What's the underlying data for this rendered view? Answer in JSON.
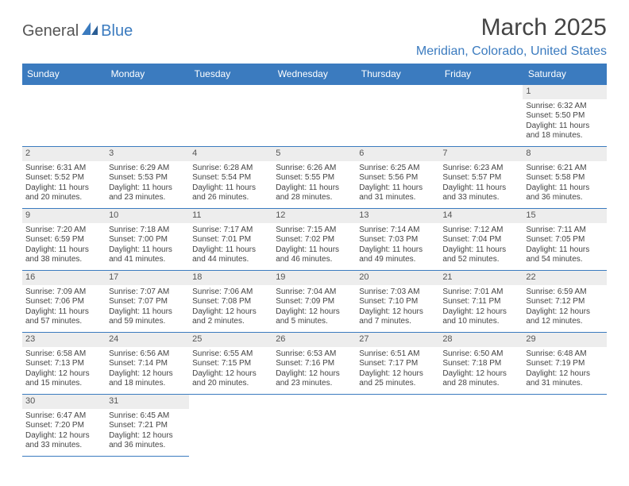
{
  "logo": {
    "t1": "General",
    "t2": "Blue"
  },
  "title": "March 2025",
  "location": "Meridian, Colorado, United States",
  "colors": {
    "brand": "#3b7bbf",
    "gray": "#ededed"
  },
  "dayHeaders": [
    "Sunday",
    "Monday",
    "Tuesday",
    "Wednesday",
    "Thursday",
    "Friday",
    "Saturday"
  ],
  "weeks": [
    [
      null,
      null,
      null,
      null,
      null,
      null,
      {
        "d": "1",
        "sr": "Sunrise: 6:32 AM",
        "ss": "Sunset: 5:50 PM",
        "dl1": "Daylight: 11 hours",
        "dl2": "and 18 minutes."
      }
    ],
    [
      {
        "d": "2",
        "sr": "Sunrise: 6:31 AM",
        "ss": "Sunset: 5:52 PM",
        "dl1": "Daylight: 11 hours",
        "dl2": "and 20 minutes."
      },
      {
        "d": "3",
        "sr": "Sunrise: 6:29 AM",
        "ss": "Sunset: 5:53 PM",
        "dl1": "Daylight: 11 hours",
        "dl2": "and 23 minutes."
      },
      {
        "d": "4",
        "sr": "Sunrise: 6:28 AM",
        "ss": "Sunset: 5:54 PM",
        "dl1": "Daylight: 11 hours",
        "dl2": "and 26 minutes."
      },
      {
        "d": "5",
        "sr": "Sunrise: 6:26 AM",
        "ss": "Sunset: 5:55 PM",
        "dl1": "Daylight: 11 hours",
        "dl2": "and 28 minutes."
      },
      {
        "d": "6",
        "sr": "Sunrise: 6:25 AM",
        "ss": "Sunset: 5:56 PM",
        "dl1": "Daylight: 11 hours",
        "dl2": "and 31 minutes."
      },
      {
        "d": "7",
        "sr": "Sunrise: 6:23 AM",
        "ss": "Sunset: 5:57 PM",
        "dl1": "Daylight: 11 hours",
        "dl2": "and 33 minutes."
      },
      {
        "d": "8",
        "sr": "Sunrise: 6:21 AM",
        "ss": "Sunset: 5:58 PM",
        "dl1": "Daylight: 11 hours",
        "dl2": "and 36 minutes."
      }
    ],
    [
      {
        "d": "9",
        "sr": "Sunrise: 7:20 AM",
        "ss": "Sunset: 6:59 PM",
        "dl1": "Daylight: 11 hours",
        "dl2": "and 38 minutes."
      },
      {
        "d": "10",
        "sr": "Sunrise: 7:18 AM",
        "ss": "Sunset: 7:00 PM",
        "dl1": "Daylight: 11 hours",
        "dl2": "and 41 minutes."
      },
      {
        "d": "11",
        "sr": "Sunrise: 7:17 AM",
        "ss": "Sunset: 7:01 PM",
        "dl1": "Daylight: 11 hours",
        "dl2": "and 44 minutes."
      },
      {
        "d": "12",
        "sr": "Sunrise: 7:15 AM",
        "ss": "Sunset: 7:02 PM",
        "dl1": "Daylight: 11 hours",
        "dl2": "and 46 minutes."
      },
      {
        "d": "13",
        "sr": "Sunrise: 7:14 AM",
        "ss": "Sunset: 7:03 PM",
        "dl1": "Daylight: 11 hours",
        "dl2": "and 49 minutes."
      },
      {
        "d": "14",
        "sr": "Sunrise: 7:12 AM",
        "ss": "Sunset: 7:04 PM",
        "dl1": "Daylight: 11 hours",
        "dl2": "and 52 minutes."
      },
      {
        "d": "15",
        "sr": "Sunrise: 7:11 AM",
        "ss": "Sunset: 7:05 PM",
        "dl1": "Daylight: 11 hours",
        "dl2": "and 54 minutes."
      }
    ],
    [
      {
        "d": "16",
        "sr": "Sunrise: 7:09 AM",
        "ss": "Sunset: 7:06 PM",
        "dl1": "Daylight: 11 hours",
        "dl2": "and 57 minutes."
      },
      {
        "d": "17",
        "sr": "Sunrise: 7:07 AM",
        "ss": "Sunset: 7:07 PM",
        "dl1": "Daylight: 11 hours",
        "dl2": "and 59 minutes."
      },
      {
        "d": "18",
        "sr": "Sunrise: 7:06 AM",
        "ss": "Sunset: 7:08 PM",
        "dl1": "Daylight: 12 hours",
        "dl2": "and 2 minutes."
      },
      {
        "d": "19",
        "sr": "Sunrise: 7:04 AM",
        "ss": "Sunset: 7:09 PM",
        "dl1": "Daylight: 12 hours",
        "dl2": "and 5 minutes."
      },
      {
        "d": "20",
        "sr": "Sunrise: 7:03 AM",
        "ss": "Sunset: 7:10 PM",
        "dl1": "Daylight: 12 hours",
        "dl2": "and 7 minutes."
      },
      {
        "d": "21",
        "sr": "Sunrise: 7:01 AM",
        "ss": "Sunset: 7:11 PM",
        "dl1": "Daylight: 12 hours",
        "dl2": "and 10 minutes."
      },
      {
        "d": "22",
        "sr": "Sunrise: 6:59 AM",
        "ss": "Sunset: 7:12 PM",
        "dl1": "Daylight: 12 hours",
        "dl2": "and 12 minutes."
      }
    ],
    [
      {
        "d": "23",
        "sr": "Sunrise: 6:58 AM",
        "ss": "Sunset: 7:13 PM",
        "dl1": "Daylight: 12 hours",
        "dl2": "and 15 minutes."
      },
      {
        "d": "24",
        "sr": "Sunrise: 6:56 AM",
        "ss": "Sunset: 7:14 PM",
        "dl1": "Daylight: 12 hours",
        "dl2": "and 18 minutes."
      },
      {
        "d": "25",
        "sr": "Sunrise: 6:55 AM",
        "ss": "Sunset: 7:15 PM",
        "dl1": "Daylight: 12 hours",
        "dl2": "and 20 minutes."
      },
      {
        "d": "26",
        "sr": "Sunrise: 6:53 AM",
        "ss": "Sunset: 7:16 PM",
        "dl1": "Daylight: 12 hours",
        "dl2": "and 23 minutes."
      },
      {
        "d": "27",
        "sr": "Sunrise: 6:51 AM",
        "ss": "Sunset: 7:17 PM",
        "dl1": "Daylight: 12 hours",
        "dl2": "and 25 minutes."
      },
      {
        "d": "28",
        "sr": "Sunrise: 6:50 AM",
        "ss": "Sunset: 7:18 PM",
        "dl1": "Daylight: 12 hours",
        "dl2": "and 28 minutes."
      },
      {
        "d": "29",
        "sr": "Sunrise: 6:48 AM",
        "ss": "Sunset: 7:19 PM",
        "dl1": "Daylight: 12 hours",
        "dl2": "and 31 minutes."
      }
    ],
    [
      {
        "d": "30",
        "sr": "Sunrise: 6:47 AM",
        "ss": "Sunset: 7:20 PM",
        "dl1": "Daylight: 12 hours",
        "dl2": "and 33 minutes."
      },
      {
        "d": "31",
        "sr": "Sunrise: 6:45 AM",
        "ss": "Sunset: 7:21 PM",
        "dl1": "Daylight: 12 hours",
        "dl2": "and 36 minutes."
      },
      null,
      null,
      null,
      null,
      null
    ]
  ]
}
